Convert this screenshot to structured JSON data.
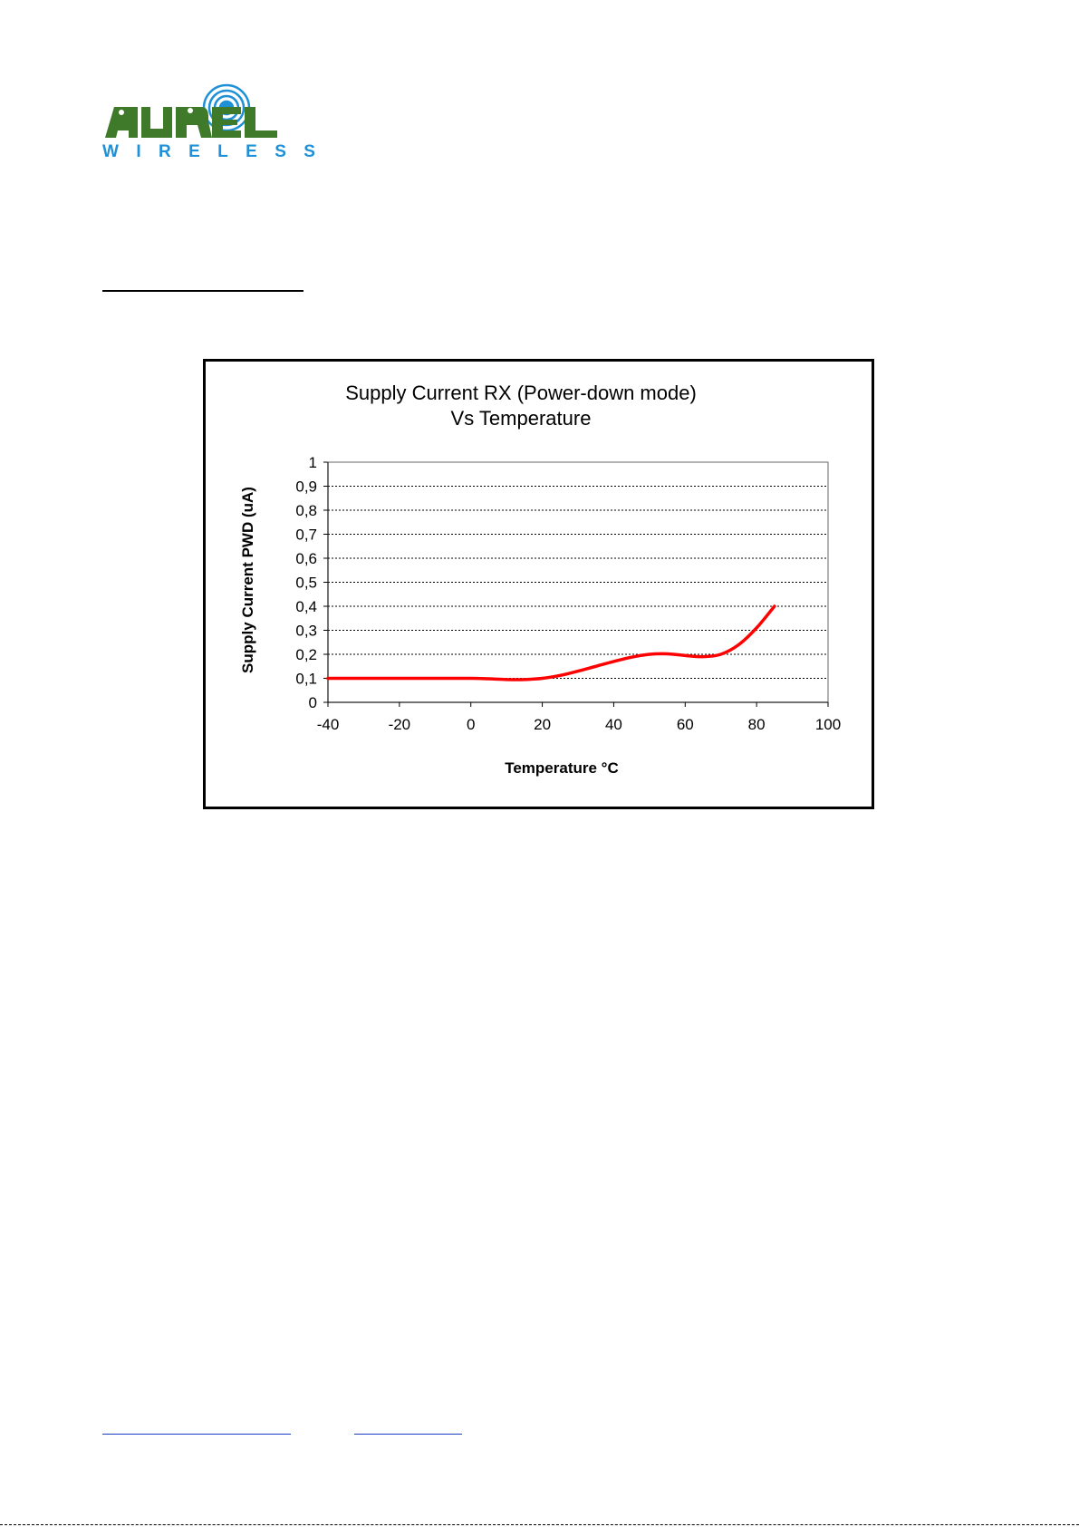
{
  "brand": {
    "logo_text": "AUREL",
    "wordmark": [
      "W",
      "I",
      "R",
      "E",
      "L",
      "E",
      "S",
      "S"
    ],
    "colors": {
      "green": "#3f7a2a",
      "blue": "#1e90d8"
    }
  },
  "chart_data": {
    "type": "line",
    "title": "Supply Current RX (Power-down mode)",
    "subtitle": "Vs Temperature",
    "xlabel": "Temperature °C",
    "ylabel": "Supply Current PWD (uA)",
    "xlim": [
      -40,
      100
    ],
    "ylim": [
      0,
      1
    ],
    "x_ticks": [
      "-40",
      "-20",
      "0",
      "20",
      "40",
      "60",
      "80",
      "100"
    ],
    "y_ticks": [
      "0",
      "0,1",
      "0,2",
      "0,3",
      "0,4",
      "0,5",
      "0,6",
      "0,7",
      "0,8",
      "0,9",
      "1"
    ],
    "grid": true,
    "series": [
      {
        "color": "#ff0000",
        "x": [
          -40,
          -30,
          -20,
          -10,
          0,
          5,
          10,
          15,
          20,
          25,
          30,
          35,
          40,
          45,
          50,
          55,
          60,
          65,
          70,
          75,
          80,
          85
        ],
        "y": [
          0.1,
          0.1,
          0.1,
          0.1,
          0.1,
          0.098,
          0.095,
          0.095,
          0.1,
          0.112,
          0.13,
          0.15,
          0.17,
          0.188,
          0.2,
          0.202,
          0.195,
          0.19,
          0.2,
          0.24,
          0.31,
          0.4
        ]
      }
    ]
  }
}
